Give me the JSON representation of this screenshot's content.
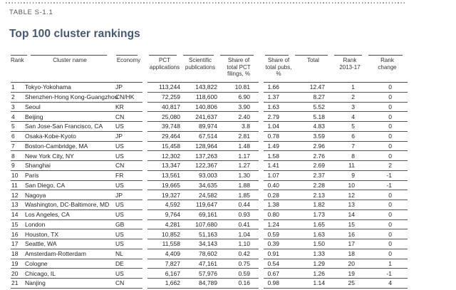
{
  "page": {
    "label": "TABLE S-1.1",
    "title": "Top 100 cluster rankings"
  },
  "colors": {
    "title_text": "#465771",
    "rule": "#4a4b4d",
    "body_text": "#242424",
    "label_text": "#545659"
  },
  "table": {
    "header": {
      "rank": "Rank",
      "cluster": "Cluster name",
      "economy": "Economy",
      "pct": "PCT\napplications",
      "scipub": "Scientific\npublications",
      "share_pct": "Share of\ntotal PCT\nfilings, %",
      "share_pubs": "Share of\ntotal pubs,\n%",
      "total": "Total",
      "rank_2013_17": "Rank\n2013-17",
      "rank_change": "Rank\nchange"
    },
    "rows": [
      [
        "1",
        "Tokyo-Yokohama",
        "JP",
        "113,244",
        "143,822",
        "10.81",
        "1.66",
        "12.47",
        "1",
        "0"
      ],
      [
        "2",
        "Shenzhen-Hong Kong-Guangzhou",
        "CN/HK",
        "72,259",
        "118,600",
        "6.90",
        "1.37",
        "8.27",
        "2",
        "0"
      ],
      [
        "3",
        "Seoul",
        "KR",
        "40,817",
        "140,806",
        "3.90",
        "1.63",
        "5.52",
        "3",
        "0"
      ],
      [
        "4",
        "Beijing",
        "CN",
        "25,080",
        "241,637",
        "2.40",
        "2.79",
        "5.18",
        "4",
        "0"
      ],
      [
        "5",
        "San Jose-San Francisco, CA",
        "US",
        "39,748",
        "89,974",
        "3.8",
        "1.04",
        "4.83",
        "5",
        "0"
      ],
      [
        "6",
        "Osaka-Kobe-Kyoto",
        "JP",
        "29,464",
        "67,514",
        "2.81",
        "0.78",
        "3.59",
        "6",
        "0"
      ],
      [
        "7",
        "Boston-Cambridge, MA",
        "US",
        "15,458",
        "128,964",
        "1.48",
        "1.49",
        "2.96",
        "7",
        "0"
      ],
      [
        "8",
        "New York City, NY",
        "US",
        "12,302",
        "137,263",
        "1.17",
        "1.58",
        "2.76",
        "8",
        "0"
      ],
      [
        "9",
        "Shanghai",
        "CN",
        "13,347",
        "122,367",
        "1.27",
        "1.41",
        "2.69",
        "11",
        "2"
      ],
      [
        "10",
        "Paris",
        "FR",
        "13,561",
        "93,003",
        "1.30",
        "1.07",
        "2.37",
        "9",
        "-1"
      ],
      [
        "11",
        "San Diego, CA",
        "US",
        "19,665",
        "34,635",
        "1.88",
        "0.40",
        "2.28",
        "10",
        "-1"
      ],
      [
        "12",
        "Nagoya",
        "JP",
        "19,327",
        "24,582",
        "1.85",
        "0.28",
        "2.13",
        "12",
        "0"
      ],
      [
        "13",
        "Washington, DC-Baltimore, MD",
        "US",
        "4,592",
        "119,647",
        "0.44",
        "1.38",
        "1.82",
        "13",
        "0"
      ],
      [
        "14",
        "Los Angeles, CA",
        "US",
        "9,764",
        "69,161",
        "0.93",
        "0.80",
        "1.73",
        "14",
        "0"
      ],
      [
        "15",
        "London",
        "GB",
        "4,281",
        "107,680",
        "0.41",
        "1.24",
        "1.65",
        "15",
        "0"
      ],
      [
        "16",
        "Houston, TX",
        "US",
        "10,852",
        "51,163",
        "1.04",
        "0.59",
        "1.63",
        "16",
        "0"
      ],
      [
        "17",
        "Seattle, WA",
        "US",
        "11,558",
        "34,143",
        "1.10",
        "0.39",
        "1.50",
        "17",
        "0"
      ],
      [
        "18",
        "Amsterdam-Rotterdam",
        "NL",
        "4,409",
        "78,602",
        "0.42",
        "0.91",
        "1.33",
        "18",
        "0"
      ],
      [
        "19",
        "Cologne",
        "DE",
        "7,827",
        "47,161",
        "0.75",
        "0.54",
        "1.29",
        "20",
        "1"
      ],
      [
        "20",
        "Chicago, IL",
        "US",
        "6,167",
        "57,976",
        "0.59",
        "0.67",
        "1.26",
        "19",
        "-1"
      ],
      [
        "21",
        "Nanjing",
        "CN",
        "1,662",
        "84,789",
        "0.16",
        "0.98",
        "1.14",
        "25",
        "4"
      ]
    ]
  }
}
